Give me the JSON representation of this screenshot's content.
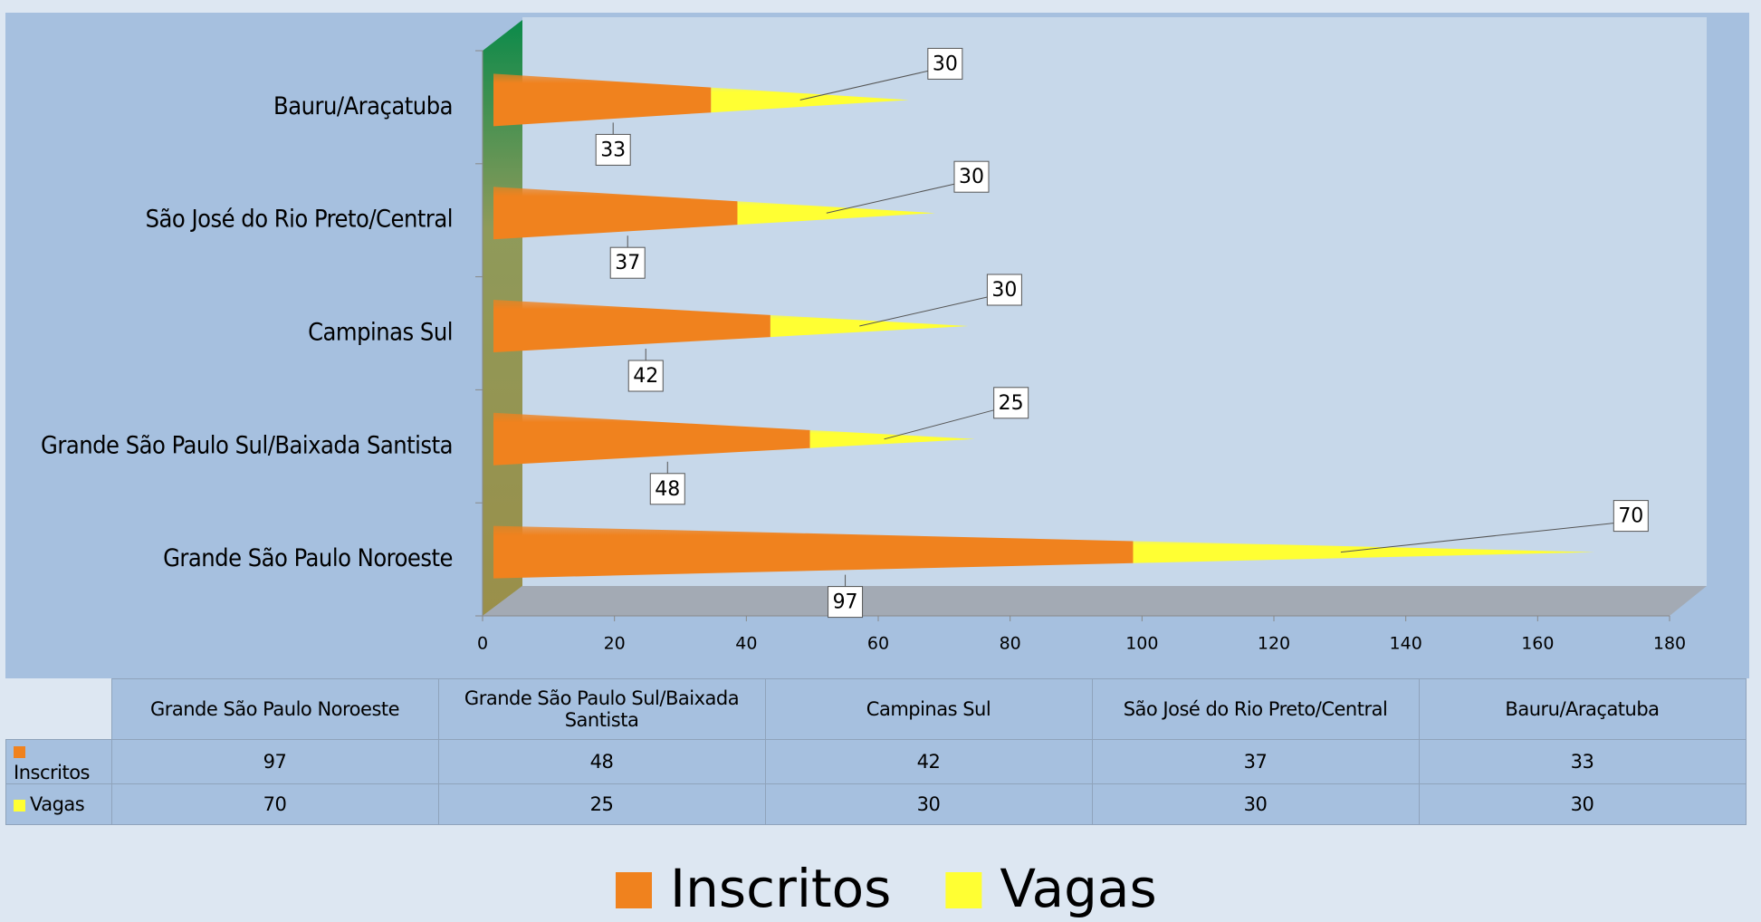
{
  "chart_data": {
    "type": "bar",
    "orientation": "horizontal",
    "stacked": true,
    "categories": [
      "Grande São Paulo Noroeste",
      "Grande São Paulo Sul/Baixada Santista",
      "Campinas Sul",
      "São José do Rio Preto/Central",
      "Bauru/Araçatuba"
    ],
    "series": [
      {
        "name": "Inscritos",
        "color": "#f0821e",
        "values": [
          97,
          48,
          42,
          37,
          33
        ]
      },
      {
        "name": "Vagas",
        "color": "#ffff33",
        "values": [
          70,
          25,
          30,
          30,
          30
        ]
      }
    ],
    "xlim": [
      0,
      180
    ],
    "xticks": [
      0,
      20,
      40,
      60,
      80,
      100,
      120,
      140,
      160,
      180
    ],
    "grid": false,
    "legend": "bottom",
    "data_table": true
  }
}
